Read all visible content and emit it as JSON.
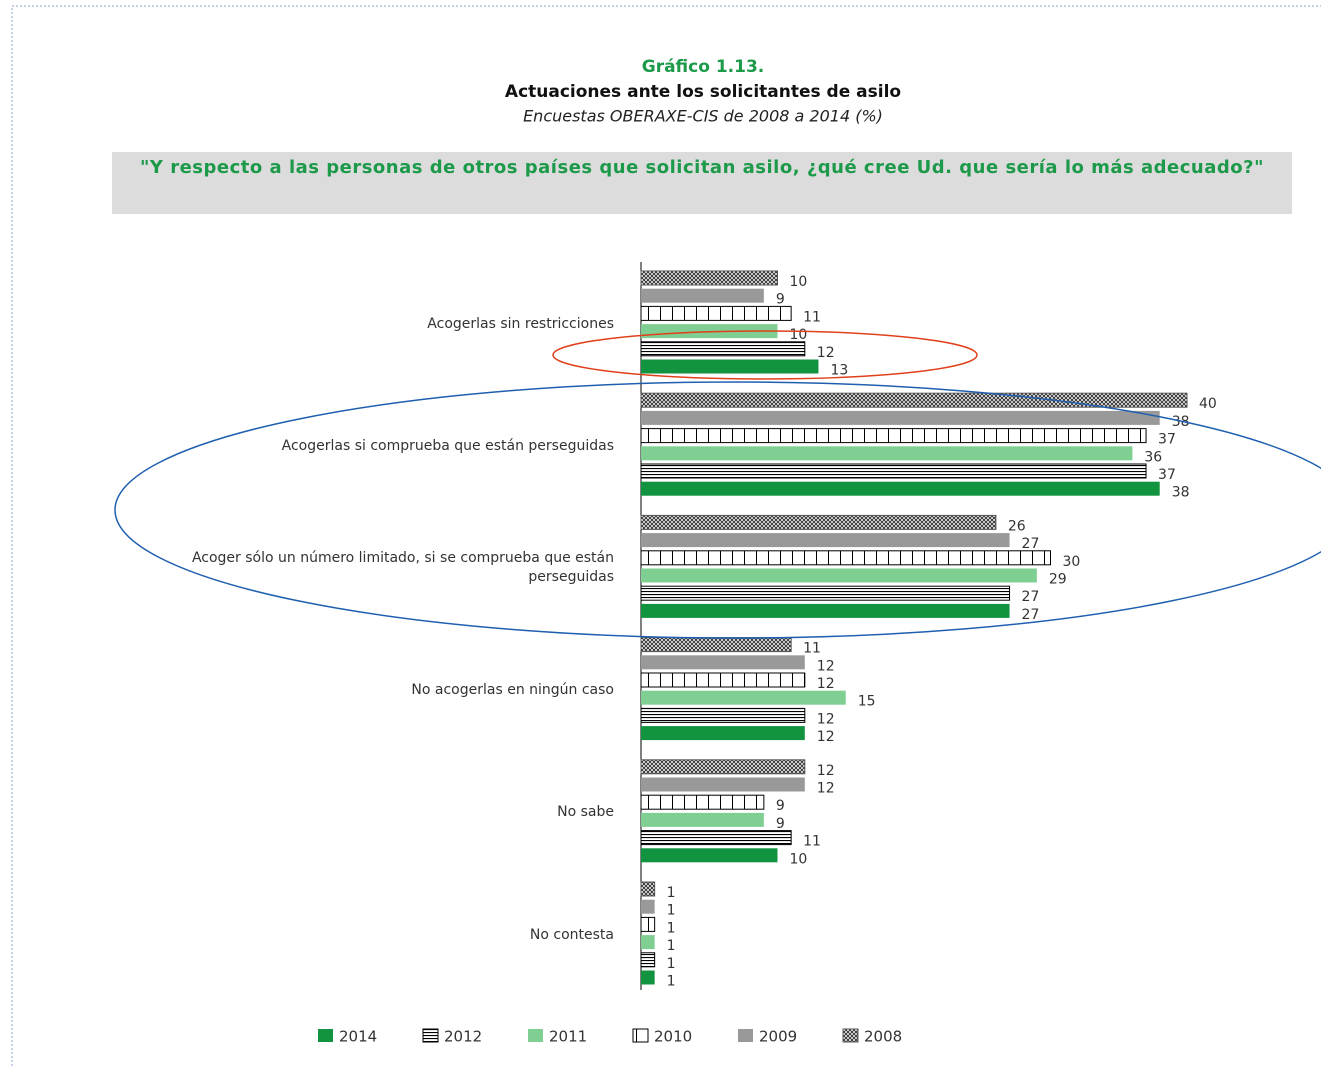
{
  "chart_data": {
    "type": "bar",
    "orientation": "horizontal",
    "label": "Gráfico 1.13.",
    "title": "Actuaciones ante los solicitantes de asilo",
    "subtitle": "Encuestas OBERAXE-CIS de 2008 a 2014 (%)",
    "question": "\"Y respecto a las personas de otros países que solicitan asilo, ¿qué cree Ud. que sería lo más adecuado?\"",
    "categories": [
      "Acogerlas sin restricciones",
      "Acogerlas si comprueba que están perseguidas",
      "Acoger sólo un número limitado, si se comprueba que están perseguidas",
      "No acogerlas en ningún caso",
      "No sabe",
      "No contesta"
    ],
    "series": [
      {
        "name": "2008",
        "color": "#555555",
        "pattern": "crosshatch",
        "values": [
          10,
          40,
          26,
          11,
          12,
          1
        ]
      },
      {
        "name": "2009",
        "color": "#999999",
        "values": [
          9,
          38,
          27,
          12,
          12,
          1
        ]
      },
      {
        "name": "2010",
        "color": "#000000",
        "pattern": "vertical",
        "values": [
          11,
          37,
          30,
          12,
          9,
          1
        ]
      },
      {
        "name": "2011",
        "color": "#7fcf93",
        "values": [
          10,
          36,
          29,
          15,
          9,
          1
        ]
      },
      {
        "name": "2012",
        "color": "#000000",
        "pattern": "horizontal",
        "values": [
          12,
          37,
          27,
          12,
          11,
          1
        ]
      },
      {
        "name": "2014",
        "color": "#12933f",
        "values": [
          13,
          38,
          27,
          12,
          10,
          1
        ]
      }
    ],
    "legend": "bottom"
  }
}
